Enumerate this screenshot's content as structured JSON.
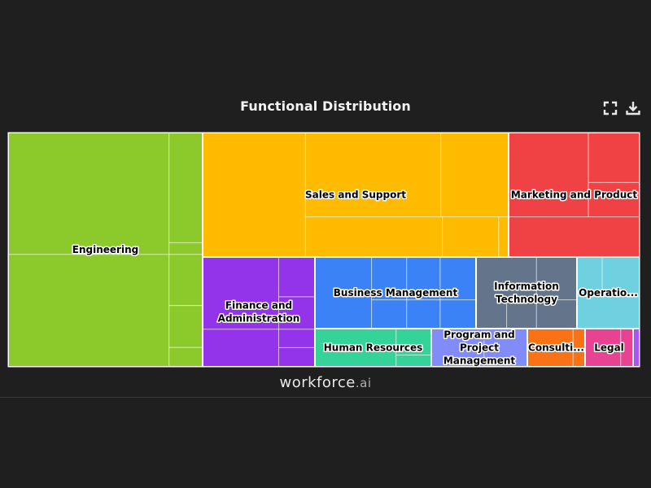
{
  "chart_data": {
    "type": "treemap",
    "title": "Functional Distribution",
    "categories": [
      {
        "name": "Engineering",
        "color": "#8cc92a",
        "value": 1395,
        "label": "Engineering"
      },
      {
        "name": "Sales and Support",
        "color": "#ffbb00",
        "value": 1098,
        "label": "Sales and Support"
      },
      {
        "name": "Marketing and Product",
        "color": "#f04245",
        "value": 495,
        "label": "Marketing and Product"
      },
      {
        "name": "Finance and Administration",
        "color": "#9333ea",
        "value": 429,
        "label": "Finance and\nAdministration"
      },
      {
        "name": "Business Management",
        "color": "#3b82f6",
        "value": 337,
        "label": "Business Management"
      },
      {
        "name": "Information Technology",
        "color": "#64748b",
        "value": 212,
        "label": "Information\nTechnology"
      },
      {
        "name": "Operations",
        "color": "#6fd1e0",
        "value": 149,
        "label": "Operatio..."
      },
      {
        "name": "Human Resources",
        "color": "#34d399",
        "value": 111,
        "label": "Human Resources"
      },
      {
        "name": "Program and Project Management",
        "color": "#818cf8",
        "value": 82,
        "label": "Program and\nProject\nManagement"
      },
      {
        "name": "Consulting",
        "color": "#f97316",
        "value": 58,
        "label": "Consulti..."
      },
      {
        "name": "Legal",
        "color": "#e84393",
        "value": 46,
        "label": "Legal"
      },
      {
        "name": "Other",
        "color": "#a855f7",
        "value": 11,
        "label": ""
      }
    ]
  },
  "toolbar": {
    "fullscreen_icon": "fullscreen-icon",
    "download_icon": "download-icon"
  },
  "brand": {
    "main": "workforce",
    "suffix": ".ai"
  }
}
